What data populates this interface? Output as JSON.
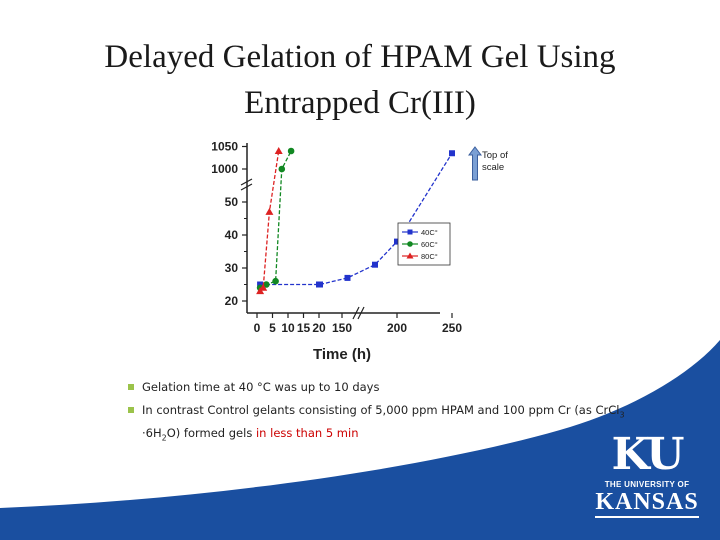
{
  "slide": {
    "title_line1": "Delayed Gelation of HPAM Gel Using",
    "title_line2": "Entrapped Cr(III)",
    "bullets": [
      {
        "text": "Gelation time at 40 °C was up to 10 days"
      },
      {
        "text_pre": "In contrast Control gelants consisting of 5,000 ppm HPAM and 100 ppm Cr (as CrCl",
        "sub1": "3",
        "text_mid": " ·6H",
        "sub2": "2",
        "text_mid2": "O) formed gels ",
        "text_highlight": "in less than 5 min"
      }
    ],
    "note": "Top of scale",
    "logo": {
      "letters": "KU",
      "univ": "THE UNIVERSITY OF",
      "name": "KANSAS"
    },
    "colors": {
      "band": "#1a4fa0",
      "bullet": "#9bc34a",
      "highlight": "#cc0000"
    }
  },
  "chart_data": {
    "type": "line",
    "xlabel": "Time (h)",
    "ylabel": "",
    "x_tick_labels": [
      "0",
      "5",
      "10",
      "15",
      "20",
      "150",
      "200",
      "250"
    ],
    "y_tick_labels": [
      "20",
      "30",
      "40",
      "50",
      "1000",
      "1050"
    ],
    "x_axis_break": "between 20 and 150",
    "y_axis_break": "between 50 and 1000",
    "legend": {
      "entries": [
        "40C°",
        "60C°",
        "80C°"
      ],
      "placement": "right"
    },
    "series": [
      {
        "name": "40C°",
        "color": "#2233cc",
        "marker": "square",
        "x": [
          1,
          20,
          130,
          155,
          180,
          200,
          250
        ],
        "y": [
          25,
          25,
          25,
          27,
          31,
          38,
          1035
        ]
      },
      {
        "name": "60C°",
        "color": "#118822",
        "marker": "circle",
        "x": [
          1,
          3,
          6,
          8,
          11
        ],
        "y": [
          24,
          25,
          26,
          1000,
          1040
        ]
      },
      {
        "name": "80C°",
        "color": "#dd2222",
        "marker": "triangle",
        "x": [
          1,
          2,
          4,
          7
        ],
        "y": [
          23,
          24,
          47,
          1040
        ]
      }
    ]
  }
}
